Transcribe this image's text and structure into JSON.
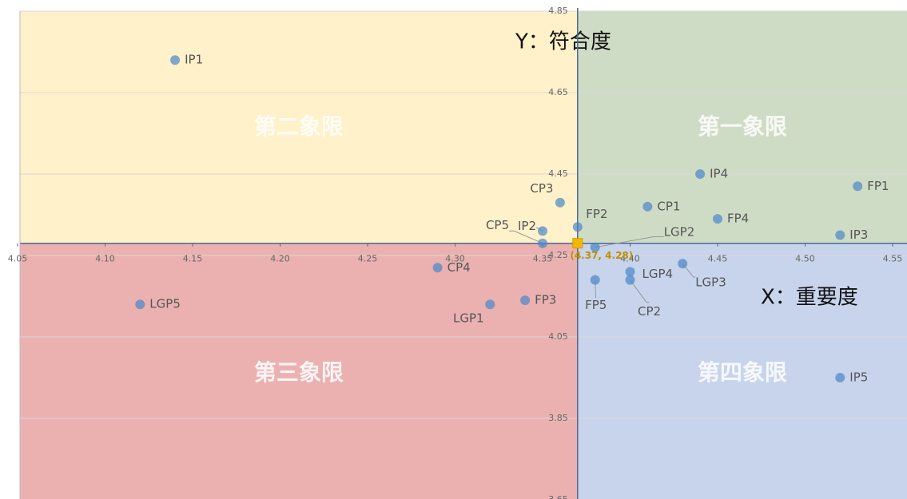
{
  "chart_data": {
    "type": "scatter",
    "x_title": "X：重要度",
    "y_title": "Y：符合度",
    "quadrants": [
      "第一象限",
      "第二象限",
      "第三象限",
      "第四象限"
    ],
    "point_labels": [
      "IP1",
      "IP4",
      "FP1",
      "CP1",
      "FP4",
      "IP3",
      "CP3",
      "FP2",
      "IP2",
      "CP5",
      "LGP2",
      "CP4",
      "LGP5",
      "LGP1",
      "FP3",
      "FP5",
      "LGP4",
      "CP2",
      "LGP3",
      "IP5"
    ],
    "x": [
      4.14,
      4.44,
      4.53,
      4.41,
      4.45,
      4.52,
      4.36,
      4.37,
      4.35,
      4.35,
      4.38,
      4.29,
      4.12,
      4.32,
      4.34,
      4.38,
      4.4,
      4.4,
      4.43,
      4.52
    ],
    "values": [
      4.73,
      4.45,
      4.42,
      4.37,
      4.34,
      4.3,
      4.38,
      4.32,
      4.31,
      4.28,
      4.27,
      4.22,
      4.13,
      4.13,
      4.14,
      4.19,
      4.21,
      4.19,
      4.23,
      3.95
    ],
    "color": "#4a86c8",
    "origin": {
      "x": 4.37,
      "y": 4.28,
      "label": "(4.37, 4.28)",
      "color": "#f5b800"
    },
    "xlim": [
      4.05,
      4.55
    ],
    "ylim": [
      3.65,
      4.85
    ],
    "xticks": [
      4.05,
      {
        "value": 4.1,
        "label": "4.10"
      },
      4.15,
      {
        "value": 4.2,
        "label": "4.20"
      },
      4.25,
      {
        "value": 4.3,
        "label": "4.30"
      },
      4.35,
      {
        "value": 4.4,
        "label": "4.40"
      },
      4.45,
      {
        "value": 4.5,
        "label": "4.50"
      },
      4.55
    ],
    "yticks": [
      3.65,
      3.85,
      4.05,
      4.25,
      4.45,
      4.65,
      4.85
    ],
    "grid": true
  }
}
